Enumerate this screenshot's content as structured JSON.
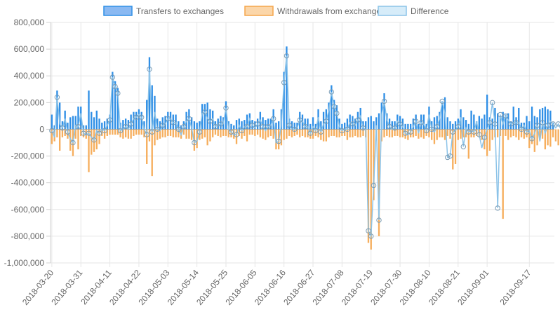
{
  "chart_data": {
    "type": "bar",
    "title": "",
    "xlabel": "",
    "ylabel": "",
    "ylim": [
      -1000000,
      800000
    ],
    "y_ticks": [
      "800,000",
      "600,000",
      "400,000",
      "200,000",
      "0",
      "-200,000",
      "-400,000",
      "-600,000",
      "-800,000",
      "-1,000,000"
    ],
    "x_tick_labels": [
      "2018-03-20",
      "2018-03-31",
      "2018-04-11",
      "2018-04-22",
      "2018-05-03",
      "2018-05-14",
      "2018-05-25",
      "2018-06-05",
      "2018-06-16",
      "2018-06-27",
      "2018-07-08",
      "2018-07-19",
      "2018-07-30",
      "2018-08-10",
      "2018-08-21",
      "2018-09-01",
      "2018-09-17"
    ],
    "start_date": "2018-03-20",
    "end_date": "2018-09-17",
    "grid": true,
    "legend_position": "top",
    "series": [
      {
        "name": "Transfers to exchanges",
        "kind": "bar",
        "color": "#2f8fe6",
        "fill": "#8ab9f2"
      },
      {
        "name": "Withdrawals from exchanges",
        "kind": "bar",
        "color": "#f5a54b",
        "fill": "#fbd6a9"
      },
      {
        "name": "Difference",
        "kind": "line",
        "color": "#8cc3e8",
        "fill": "#d6ecf9"
      }
    ],
    "transfers": [
      110000,
      30000,
      290000,
      200000,
      60000,
      140000,
      50000,
      90000,
      100000,
      100000,
      170000,
      170000,
      30000,
      30000,
      290000,
      130000,
      90000,
      140000,
      80000,
      50000,
      60000,
      80000,
      110000,
      430000,
      360000,
      310000,
      50000,
      70000,
      80000,
      70000,
      110000,
      130000,
      130000,
      150000,
      130000,
      60000,
      220000,
      540000,
      330000,
      250000,
      80000,
      60000,
      90000,
      100000,
      130000,
      130000,
      110000,
      110000,
      60000,
      30000,
      60000,
      130000,
      150000,
      90000,
      60000,
      50000,
      60000,
      190000,
      190000,
      200000,
      150000,
      140000,
      60000,
      80000,
      100000,
      90000,
      210000,
      60000,
      40000,
      30000,
      70000,
      80000,
      60000,
      70000,
      110000,
      120000,
      70000,
      60000,
      80000,
      130000,
      90000,
      70000,
      80000,
      80000,
      150000,
      50000,
      60000,
      150000,
      430000,
      620000,
      80000,
      60000,
      50000,
      50000,
      130000,
      110000,
      80000,
      80000,
      40000,
      90000,
      40000,
      150000,
      60000,
      130000,
      150000,
      200000,
      330000,
      220000,
      180000,
      80000,
      40000,
      50000,
      80000,
      110000,
      100000,
      80000,
      130000,
      160000,
      60000,
      60000,
      90000,
      100000,
      60000,
      90000,
      120000,
      200000,
      270000,
      120000,
      80000,
      60000,
      60000,
      110000,
      100000,
      80000,
      40000,
      40000,
      40000,
      80000,
      110000,
      40000,
      110000,
      110000,
      40000,
      170000,
      60000,
      90000,
      100000,
      130000,
      210000,
      240000,
      90000,
      60000,
      40000,
      60000,
      80000,
      150000,
      90000,
      70000,
      40000,
      140000,
      110000,
      60000,
      100000,
      80000,
      110000,
      260000,
      90000,
      80000,
      160000,
      120000,
      100000,
      130000,
      110000,
      120000,
      60000,
      170000,
      90000,
      160000,
      50000,
      50000,
      100000,
      60000,
      170000,
      100000,
      90000,
      150000,
      160000,
      170000,
      150000,
      140000,
      50000
    ],
    "withdrawals": [
      -110000,
      -90000,
      -60000,
      -160000,
      -60000,
      -50000,
      -70000,
      -160000,
      -200000,
      -70000,
      -150000,
      -50000,
      -60000,
      -70000,
      -320000,
      -190000,
      -170000,
      -150000,
      -110000,
      -50000,
      -70000,
      -50000,
      -40000,
      -40000,
      -40000,
      -40000,
      -60000,
      -70000,
      -60000,
      -70000,
      -70000,
      -50000,
      -40000,
      -40000,
      -40000,
      -60000,
      -260000,
      -90000,
      -350000,
      -120000,
      -80000,
      -70000,
      -60000,
      -60000,
      -50000,
      -50000,
      -60000,
      -60000,
      -60000,
      -70000,
      -40000,
      -70000,
      -70000,
      -80000,
      -160000,
      -140000,
      -80000,
      -70000,
      -60000,
      -120000,
      -90000,
      -60000,
      -40000,
      -50000,
      -60000,
      -50000,
      -50000,
      -60000,
      -60000,
      -70000,
      -110000,
      -50000,
      -70000,
      -50000,
      -90000,
      -40000,
      -40000,
      -50000,
      -40000,
      -60000,
      -70000,
      -80000,
      -60000,
      -50000,
      -70000,
      -150000,
      -150000,
      -120000,
      -80000,
      -70000,
      -50000,
      -60000,
      -50000,
      -40000,
      -60000,
      -50000,
      -60000,
      -60000,
      -70000,
      -70000,
      -50000,
      -60000,
      -80000,
      -90000,
      -90000,
      -60000,
      -50000,
      -50000,
      -60000,
      -60000,
      -50000,
      -50000,
      -80000,
      -60000,
      -60000,
      -50000,
      -60000,
      -60000,
      -50000,
      -60000,
      -850000,
      -900000,
      -530000,
      -60000,
      -800000,
      -90000,
      -60000,
      -50000,
      -60000,
      -60000,
      -50000,
      -50000,
      -60000,
      -60000,
      -70000,
      -80000,
      -60000,
      -60000,
      -50000,
      -70000,
      -60000,
      -70000,
      -50000,
      -60000,
      -80000,
      -110000,
      -80000,
      -60000,
      -60000,
      -80000,
      -50000,
      -70000,
      -300000,
      -260000,
      -80000,
      -70000,
      -60000,
      -60000,
      -220000,
      -60000,
      -60000,
      -50000,
      -60000,
      -80000,
      -150000,
      -200000,
      -160000,
      -80000,
      -60000,
      -60000,
      -50000,
      -670000,
      -50000,
      -80000,
      -60000,
      -50000,
      -60000,
      -80000,
      -60000,
      -70000,
      -60000,
      -140000,
      -110000,
      -170000,
      -120000,
      -80000,
      -70000,
      -150000,
      -120000,
      -130000,
      -60000,
      -90000,
      -120000,
      -160000,
      -110000
    ],
    "difference": [
      -10000,
      -60000,
      240000,
      40000,
      10000,
      80000,
      -20000,
      -70000,
      -100000,
      30000,
      20000,
      120000,
      -30000,
      -40000,
      -30000,
      -60000,
      -80000,
      -10000,
      -30000,
      0,
      -10000,
      30000,
      70000,
      390000,
      320000,
      270000,
      -10000,
      0,
      20000,
      0,
      40000,
      80000,
      90000,
      110000,
      90000,
      0,
      -40000,
      450000,
      -20000,
      130000,
      0,
      -10000,
      30000,
      40000,
      80000,
      80000,
      50000,
      50000,
      0,
      -40000,
      20000,
      60000,
      80000,
      10000,
      -100000,
      -90000,
      -20000,
      120000,
      130000,
      80000,
      60000,
      80000,
      20000,
      30000,
      40000,
      40000,
      160000,
      0,
      -20000,
      -40000,
      -40000,
      30000,
      -10000,
      20000,
      20000,
      80000,
      30000,
      10000,
      40000,
      70000,
      20000,
      -10000,
      20000,
      30000,
      80000,
      -100000,
      -90000,
      30000,
      350000,
      550000,
      30000,
      0,
      0,
      10000,
      70000,
      60000,
      20000,
      20000,
      -30000,
      20000,
      -10000,
      90000,
      -20000,
      40000,
      60000,
      140000,
      280000,
      170000,
      120000,
      20000,
      -10000,
      0,
      0,
      50000,
      40000,
      30000,
      70000,
      100000,
      10000,
      0,
      -760000,
      -800000,
      -420000,
      30000,
      -680000,
      110000,
      210000,
      70000,
      20000,
      0,
      10000,
      60000,
      40000,
      20000,
      -30000,
      -40000,
      -20000,
      20000,
      60000,
      -30000,
      50000,
      40000,
      -10000,
      110000,
      0,
      -20000,
      20000,
      80000,
      210000,
      120000,
      -210000,
      -200000,
      -20000,
      -10000,
      20000,
      90000,
      -130000,
      10000,
      -20000,
      -10000,
      -20000,
      60000,
      -40000,
      -140000,
      -60000,
      0,
      50000,
      200000,
      40000,
      -590000,
      110000,
      40000,
      100000,
      70000,
      40000,
      50000,
      50000,
      50000,
      0,
      30000,
      -20000,
      -10000,
      -70000,
      -30000,
      30000,
      -90000,
      50000,
      -30000,
      30000,
      60000,
      40000,
      10000,
      40000,
      0,
      0,
      -30000,
      30000,
      40000
    ]
  }
}
